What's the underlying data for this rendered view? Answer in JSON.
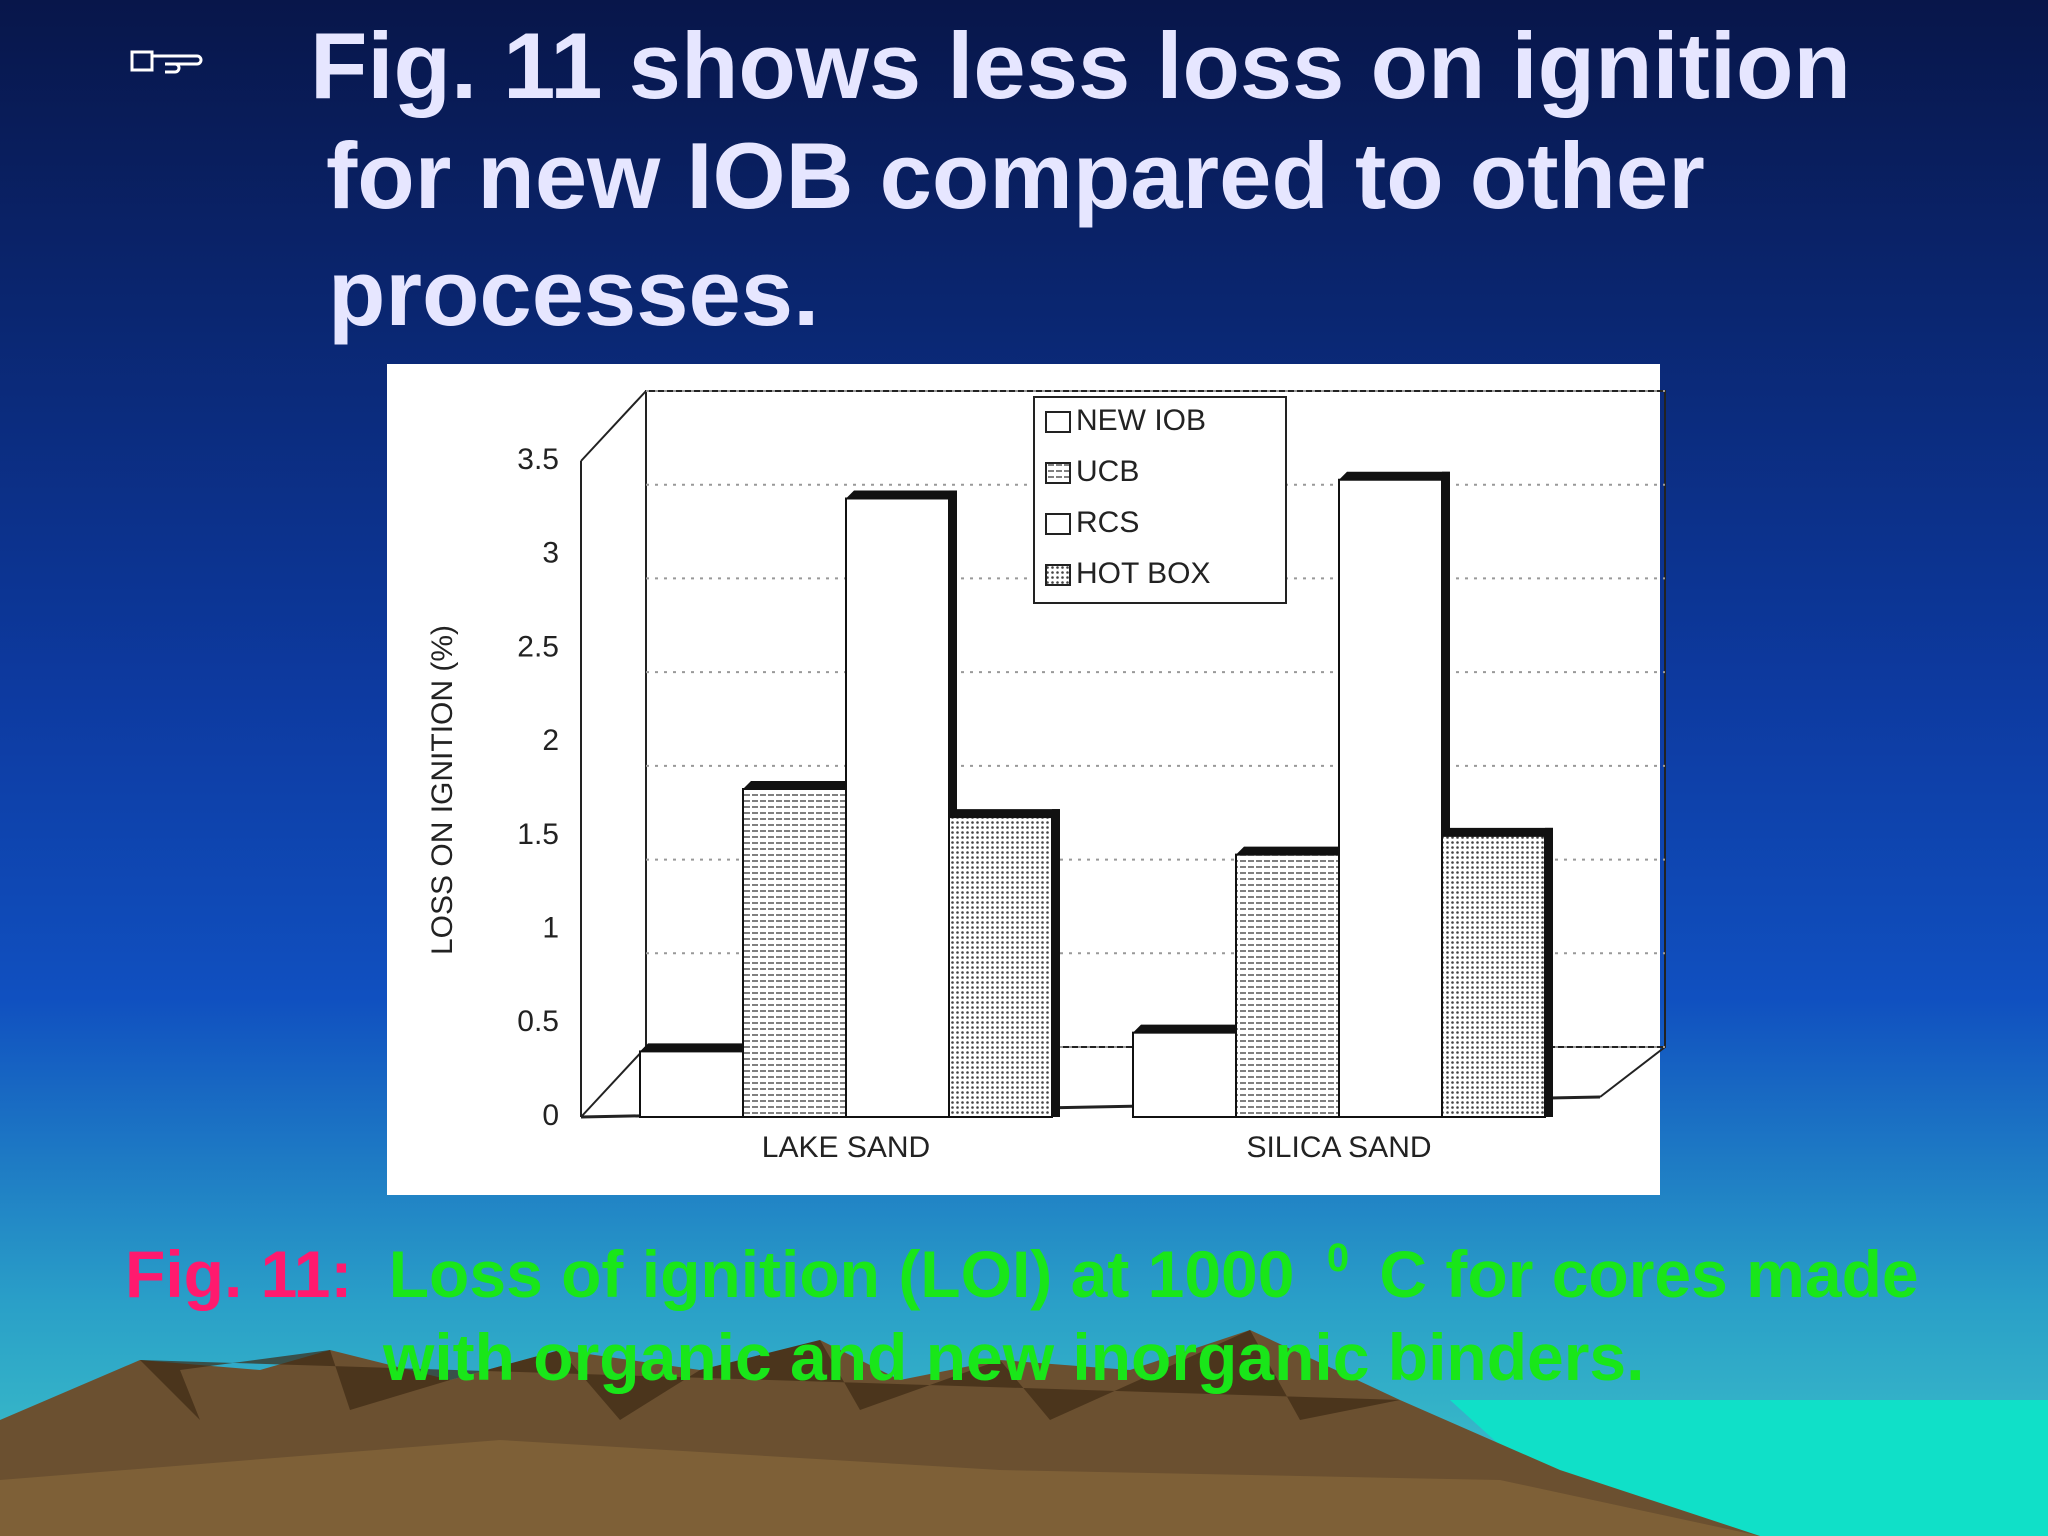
{
  "slide": {
    "title_lines": [
      "Fig. 11 shows less loss on ignition",
      "for new IOB compared to other",
      "processes."
    ],
    "caption_label": "Fig. 11:",
    "caption_pre": "Loss of ignition (LOI) at 1000",
    "caption_sup": "0",
    "caption_post": "C for cores made",
    "caption_line2": "with organic and new inorganic binders."
  },
  "chart_data": {
    "type": "bar",
    "y_label": "LOSS ON IGNITION (%)",
    "categories": [
      "LAKE SAND",
      "SILICA SAND"
    ],
    "series": [
      {
        "name": "NEW  IOB",
        "color": "#ffffff",
        "values": [
          0.35,
          0.45
        ]
      },
      {
        "name": "UCB",
        "color": "#d0d0d0",
        "values": [
          1.75,
          1.4
        ]
      },
      {
        "name": "RCS",
        "color": "#ffffff",
        "values": [
          3.3,
          3.4
        ]
      },
      {
        "name": "HOT BOX",
        "color": "#b8b8b8",
        "values": [
          1.6,
          1.5
        ]
      }
    ],
    "ylim": [
      0,
      3.5
    ],
    "yticks": [
      0,
      0.5,
      1,
      1.5,
      2,
      2.5,
      3,
      3.5
    ],
    "grid": true
  }
}
